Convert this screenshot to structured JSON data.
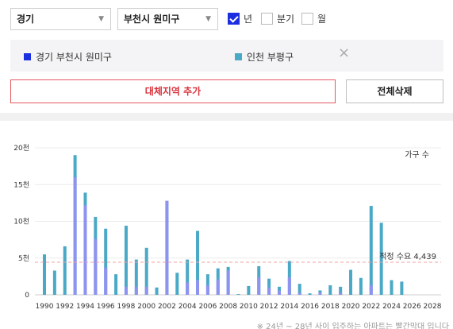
{
  "controls": {
    "province": "경기",
    "city": "부천시 원미구",
    "periods": [
      {
        "label": "년",
        "checked": true
      },
      {
        "label": "분기",
        "checked": false
      },
      {
        "label": "월",
        "checked": false
      }
    ]
  },
  "regions": [
    {
      "name": "경기 부천시 원미구",
      "color": "#1b2ee0"
    },
    {
      "name": "인천 부평구",
      "color": "#4aa9c6"
    }
  ],
  "buttons": {
    "add": "대체지역 추가",
    "delete_all": "전체삭제"
  },
  "chart_data": {
    "type": "bar",
    "x": [
      1990,
      1991,
      1992,
      1993,
      1994,
      1995,
      1996,
      1997,
      1998,
      1999,
      2000,
      2001,
      2002,
      2003,
      2004,
      2005,
      2006,
      2007,
      2008,
      2009,
      2010,
      2011,
      2012,
      2013,
      2014,
      2015,
      2016,
      2017,
      2018,
      2019,
      2020,
      2021,
      2022,
      2023,
      2024,
      2025,
      2026,
      2027,
      2028
    ],
    "x_tick_labels": [
      "1990",
      "1992",
      "1994",
      "1996",
      "1998",
      "2000",
      "2002",
      "2004",
      "2006",
      "2008",
      "2010",
      "2012",
      "2014",
      "2016",
      "2018",
      "2020",
      "2022",
      "2024",
      "2026",
      "2028"
    ],
    "series": [
      {
        "name": "경기 부천시 원미구",
        "color": "#8e93f0",
        "values": [
          0,
          0,
          0,
          16000,
          12200,
          7600,
          3700,
          0,
          1100,
          1100,
          1100,
          0,
          12800,
          0,
          1700,
          2000,
          1300,
          2100,
          3300,
          0,
          0,
          2400,
          1000,
          600,
          2400,
          300,
          0,
          300,
          0,
          300,
          0,
          0,
          1300,
          0,
          0,
          0,
          0,
          0,
          0
        ]
      },
      {
        "name": "인천 부평구",
        "color": "#4aa9c6",
        "values": [
          5500,
          3300,
          6600,
          19000,
          13900,
          10600,
          9000,
          2800,
          9400,
          4800,
          6400,
          1000,
          12700,
          3000,
          4800,
          8700,
          2800,
          3600,
          3800,
          100,
          1200,
          3900,
          2200,
          1100,
          4600,
          1500,
          200,
          600,
          1300,
          1100,
          3400,
          2300,
          12100,
          9800,
          2000,
          1800,
          0,
          0,
          0
        ]
      }
    ],
    "yticks": [
      {
        "value": 0,
        "label": "0"
      },
      {
        "value": 5000,
        "label": "5천"
      },
      {
        "value": 10000,
        "label": "10천"
      },
      {
        "value": 15000,
        "label": "15천"
      },
      {
        "value": 20000,
        "label": "20천"
      }
    ],
    "ylim": [
      0,
      20000
    ],
    "ylabel_note": "가구 수",
    "reference_line": {
      "value": 4439,
      "label": "적정 수요 4,439",
      "color": "#f0a0a0"
    },
    "grid": true,
    "footnote": "※ 24년 ~ 28년 사이 입주하는 아파트는 빨간막대 입니다"
  }
}
